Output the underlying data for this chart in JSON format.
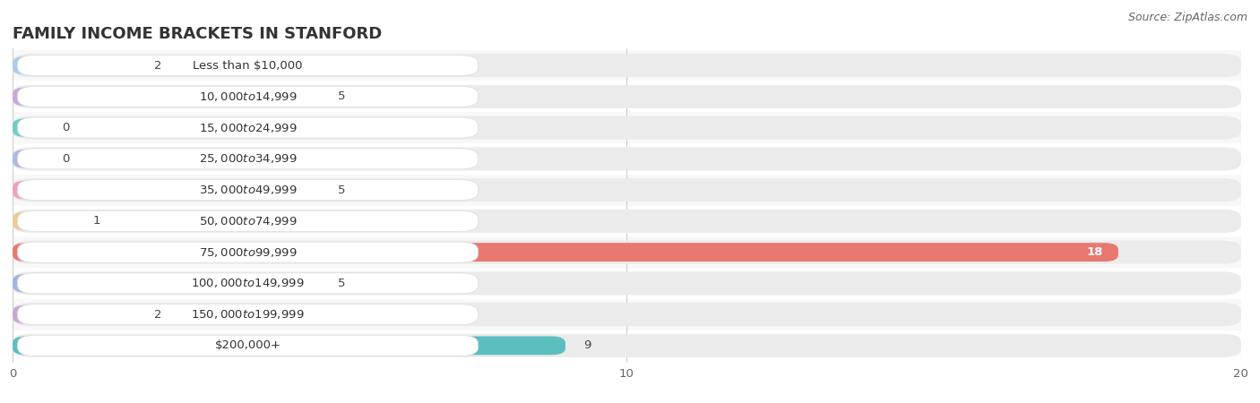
{
  "title": "FAMILY INCOME BRACKETS IN STANFORD",
  "source": "Source: ZipAtlas.com",
  "categories": [
    "Less than $10,000",
    "$10,000 to $14,999",
    "$15,000 to $24,999",
    "$25,000 to $34,999",
    "$35,000 to $49,999",
    "$50,000 to $74,999",
    "$75,000 to $99,999",
    "$100,000 to $149,999",
    "$150,000 to $199,999",
    "$200,000+"
  ],
  "values": [
    2,
    5,
    0,
    0,
    5,
    1,
    18,
    5,
    2,
    9
  ],
  "bar_colors": [
    "#aacce8",
    "#c8a8d8",
    "#6dcdc8",
    "#b0b8e8",
    "#f0a0b8",
    "#f0c890",
    "#e87870",
    "#a0b8e0",
    "#c8a8d0",
    "#5bbfbf"
  ],
  "xlim": [
    0,
    20
  ],
  "xticks": [
    0,
    10,
    20
  ],
  "background_color": "#ffffff",
  "bar_background_color": "#ebebeb",
  "label_bg_color": "#ffffff",
  "row_bg_even": "#f8f8f8",
  "row_bg_odd": "#ffffff",
  "title_fontsize": 13,
  "label_fontsize": 9.5,
  "value_fontsize": 9.5,
  "source_fontsize": 9
}
